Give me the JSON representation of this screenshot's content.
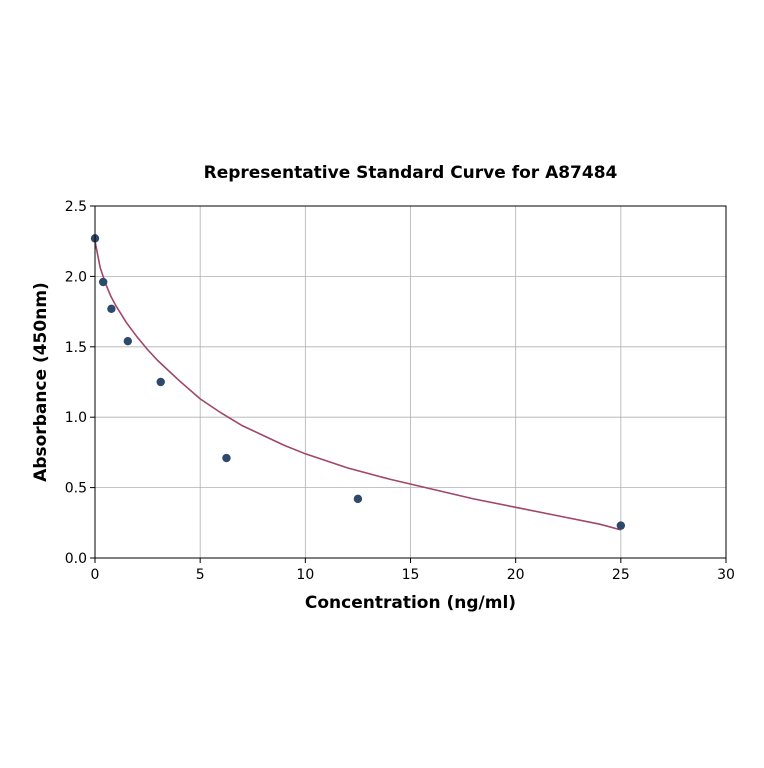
{
  "chart_data": {
    "type": "scatter",
    "title": "Representative Standard Curve for A87484",
    "xlabel": "Concentration (ng/ml)",
    "ylabel": "Absorbance (450nm)",
    "xlim": [
      0,
      30
    ],
    "ylim": [
      0,
      2.5
    ],
    "xticks": [
      0,
      5,
      10,
      15,
      20,
      25,
      30
    ],
    "xtick_labels": [
      "0",
      "5",
      "10",
      "15",
      "20",
      "25",
      "30"
    ],
    "yticks": [
      0,
      0.5,
      1.0,
      1.5,
      2.0,
      2.5
    ],
    "ytick_labels": [
      "0.0",
      "0.5",
      "1.0",
      "1.5",
      "2.0",
      "2.5"
    ],
    "grid": true,
    "points": {
      "x": [
        0,
        0.39,
        0.78,
        1.56,
        3.125,
        6.25,
        12.5,
        25
      ],
      "y": [
        2.27,
        1.96,
        1.77,
        1.54,
        1.25,
        0.71,
        0.42,
        0.23
      ],
      "color": "#2e4a6b"
    },
    "fit_curve": {
      "x": [
        0,
        0.25,
        0.5,
        0.75,
        1,
        1.5,
        2,
        2.5,
        3,
        3.5,
        4,
        5,
        6,
        7,
        8,
        9,
        10,
        12,
        14,
        16,
        18,
        20,
        22,
        24,
        25
      ],
      "y": [
        2.25,
        2.06,
        1.95,
        1.86,
        1.79,
        1.67,
        1.57,
        1.48,
        1.4,
        1.33,
        1.26,
        1.13,
        1.03,
        0.94,
        0.87,
        0.8,
        0.74,
        0.64,
        0.56,
        0.49,
        0.42,
        0.36,
        0.3,
        0.24,
        0.2
      ],
      "color": "#a0466a"
    }
  }
}
